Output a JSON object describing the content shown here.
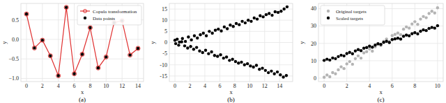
{
  "chart_data": [
    {
      "type": "line",
      "title": "(a)",
      "x_label": "x",
      "y_label": "y",
      "x": [
        0,
        1,
        2,
        3,
        4,
        5,
        6,
        7,
        8,
        9,
        10,
        11,
        12,
        13,
        14
      ],
      "series": [
        {
          "name": "Copula transformation",
          "color": "#e03030",
          "type": "line",
          "marker": "circle",
          "values": [
            0.65,
            -0.22,
            -0.02,
            -0.42,
            -0.93,
            0.82,
            -0.88,
            -0.38,
            0.3,
            -0.73,
            -0.45,
            0.43,
            0.48,
            -0.4,
            -0.23
          ]
        },
        {
          "name": "Data points",
          "color": "#000000",
          "type": "scatter",
          "marker": "circle",
          "values": [
            0.65,
            -0.22,
            -0.02,
            -0.42,
            -0.93,
            0.82,
            -0.88,
            -0.38,
            0.3,
            -0.73,
            -0.45,
            0.43,
            0.48,
            -0.4,
            -0.23
          ]
        }
      ],
      "xlim": [
        -0.7,
        14.7
      ],
      "ylim": [
        -1.08,
        0.92
      ],
      "xticks": [
        0,
        2,
        4,
        6,
        8,
        10,
        12,
        14
      ],
      "yticks": [
        {
          "value": -1.0,
          "label": "−1.0"
        },
        {
          "value": -0.5,
          "label": "−0.5"
        },
        {
          "value": 0.0,
          "label": "0.0"
        },
        {
          "value": 0.5,
          "label": "0.5"
        }
      ],
      "grid": true,
      "legend": "upper right"
    },
    {
      "type": "scatter",
      "title": "(b)",
      "x_label": "x",
      "y_label": "y",
      "series": [
        {
          "color": "#000000",
          "marker": "circle",
          "x": [
            0.0,
            0.3,
            0.6,
            1.0,
            1.4,
            1.8,
            2.2,
            2.6,
            3.0,
            3.4,
            3.8,
            4.2,
            4.6,
            5.0,
            5.4,
            5.8,
            6.2,
            6.6,
            7.0,
            7.4,
            7.8,
            8.2,
            8.6,
            9.0,
            9.4,
            9.8,
            10.2,
            10.6,
            11.0,
            11.4,
            11.8,
            12.2,
            12.6,
            13.0,
            13.4,
            13.8,
            14.2,
            14.6,
            15.0
          ],
          "values": [
            1.0,
            1.5,
            0.2,
            1.8,
            0.5,
            2.5,
            1.2,
            3.0,
            2.0,
            3.5,
            4.2,
            3.0,
            5.0,
            4.2,
            5.5,
            6.0,
            5.2,
            7.0,
            6.2,
            7.8,
            7.2,
            8.5,
            8.0,
            9.5,
            8.8,
            10.0,
            9.5,
            11.0,
            10.5,
            12.0,
            11.5,
            12.5,
            13.0,
            12.2,
            13.8,
            13.5,
            14.0,
            15.0,
            16.0
          ]
        },
        {
          "color": "#000000",
          "marker": "circle",
          "x": [
            0.1,
            0.5,
            0.9,
            1.3,
            1.7,
            2.1,
            2.5,
            2.9,
            3.3,
            3.7,
            4.1,
            4.5,
            4.9,
            5.3,
            5.7,
            6.1,
            6.5,
            6.9,
            7.3,
            7.7,
            8.1,
            8.5,
            8.9,
            9.3,
            9.7,
            10.1,
            10.5,
            10.9,
            11.3,
            11.7,
            12.1,
            12.5,
            12.9,
            13.3,
            13.7,
            14.1,
            14.5,
            14.9
          ],
          "values": [
            -0.5,
            -1.2,
            0.3,
            -1.5,
            -2.5,
            -1.8,
            -3.0,
            -2.2,
            -3.8,
            -4.5,
            -3.5,
            -5.0,
            -4.2,
            -5.8,
            -6.2,
            -5.5,
            -7.0,
            -6.5,
            -8.0,
            -7.5,
            -8.5,
            -9.2,
            -8.8,
            -10.0,
            -9.5,
            -10.5,
            -11.0,
            -10.2,
            -12.0,
            -11.5,
            -12.5,
            -13.5,
            -12.8,
            -14.0,
            -13.2,
            -14.5,
            -15.5,
            -14.8
          ]
        }
      ],
      "xlim": [
        -0.75,
        15.75
      ],
      "ylim": [
        -17.5,
        17.5
      ],
      "xticks": [
        0,
        2,
        4,
        6,
        8,
        10,
        12,
        14
      ],
      "yticks": [
        -15,
        -10,
        -5,
        0,
        5,
        10,
        15
      ],
      "grid": true
    },
    {
      "type": "scatter",
      "title": "(c)",
      "x_label": "x",
      "y_label": "y",
      "series": [
        {
          "name": "Original targets",
          "color": "#b4b4b4",
          "marker": "circle",
          "x": [
            0,
            0.25,
            0.5,
            0.75,
            1,
            1.25,
            1.5,
            1.75,
            2,
            2.25,
            2.5,
            2.75,
            3,
            3.25,
            3.5,
            3.75,
            4,
            4.25,
            4.5,
            4.75,
            5,
            5.25,
            5.5,
            5.75,
            6,
            6.25,
            6.5,
            6.75,
            7,
            7.25,
            7.5,
            7.75,
            8,
            8.25,
            8.5,
            8.75,
            9,
            9.25,
            9.5,
            9.75,
            10
          ],
          "values": [
            0.5,
            1.8,
            0.8,
            3.2,
            2.5,
            4.8,
            6.5,
            5.5,
            8.2,
            9.5,
            8.0,
            11.2,
            12.8,
            11.5,
            14.5,
            15.2,
            16.8,
            15.5,
            18.0,
            19.5,
            18.8,
            21.2,
            22.5,
            21.0,
            24.5,
            25.2,
            26.0,
            25.0,
            28.2,
            29.5,
            28.8,
            31.2,
            32.5,
            31.0,
            34.0,
            35.5,
            34.8,
            37.2,
            38.5,
            37.5,
            40.5
          ]
        },
        {
          "name": "Scaled targets",
          "color": "#000000",
          "marker": "circle",
          "x": [
            0,
            0.25,
            0.5,
            0.75,
            1,
            1.25,
            1.5,
            1.75,
            2,
            2.25,
            2.5,
            2.75,
            3,
            3.25,
            3.5,
            3.75,
            4,
            4.25,
            4.5,
            4.75,
            5,
            5.25,
            5.5,
            5.75,
            6,
            6.25,
            6.5,
            6.75,
            7,
            7.25,
            7.5,
            7.75,
            8,
            8.25,
            8.5,
            8.75,
            9,
            9.25,
            9.5,
            9.75,
            10
          ],
          "values": [
            10.2,
            10.9,
            10.4,
            11.6,
            11.2,
            12.4,
            13.2,
            12.8,
            14.1,
            14.8,
            14.0,
            15.6,
            16.4,
            15.8,
            17.2,
            17.6,
            18.4,
            17.8,
            19.0,
            19.8,
            19.4,
            20.6,
            21.2,
            20.5,
            22.2,
            22.6,
            23.0,
            22.5,
            24.1,
            24.8,
            24.4,
            25.6,
            26.2,
            25.5,
            27.0,
            27.8,
            27.4,
            28.6,
            29.2,
            28.8,
            30.2
          ]
        }
      ],
      "xlim": [
        -0.5,
        10.5
      ],
      "ylim": [
        -2,
        43
      ],
      "xticks": [
        0,
        2,
        4,
        6,
        8,
        10
      ],
      "yticks": [
        0,
        10,
        20,
        30,
        40
      ],
      "grid": true,
      "legend": "upper left"
    }
  ]
}
